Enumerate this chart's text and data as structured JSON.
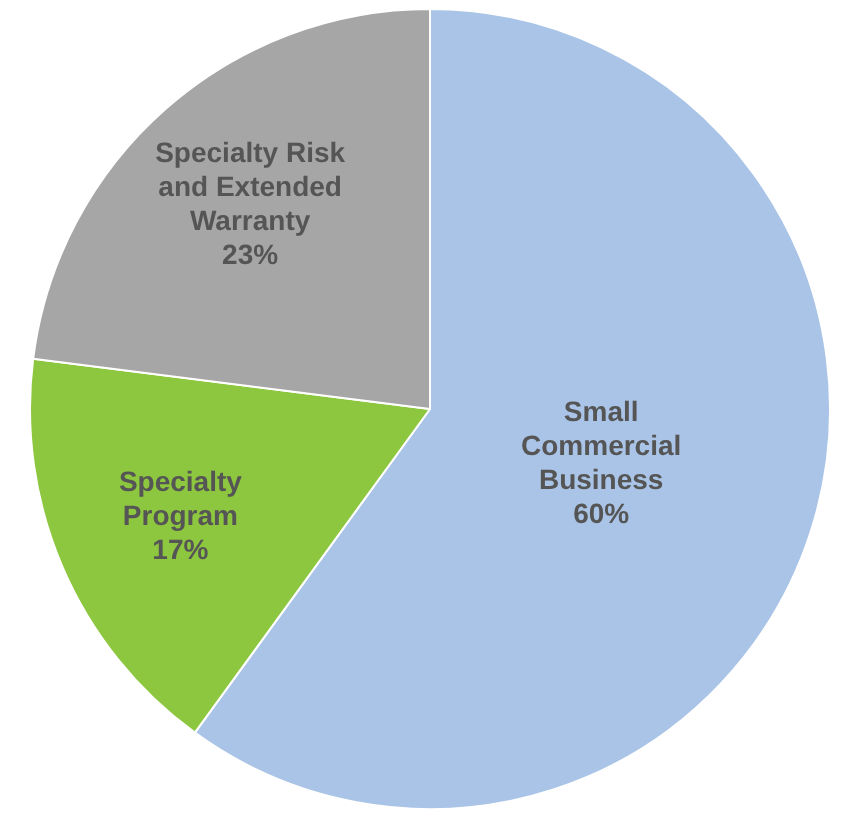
{
  "chart_data": {
    "type": "pie",
    "categories": [
      "Small Commercial Business",
      "Specialty Program",
      "Specialty Risk and Extended Warranty"
    ],
    "values": [
      60,
      17,
      23
    ],
    "colors": [
      "#a9c4e6",
      "#8dc63f",
      "#a6a6a6"
    ],
    "value_labels": [
      "60%",
      "17%",
      "23%"
    ],
    "legend": false
  }
}
